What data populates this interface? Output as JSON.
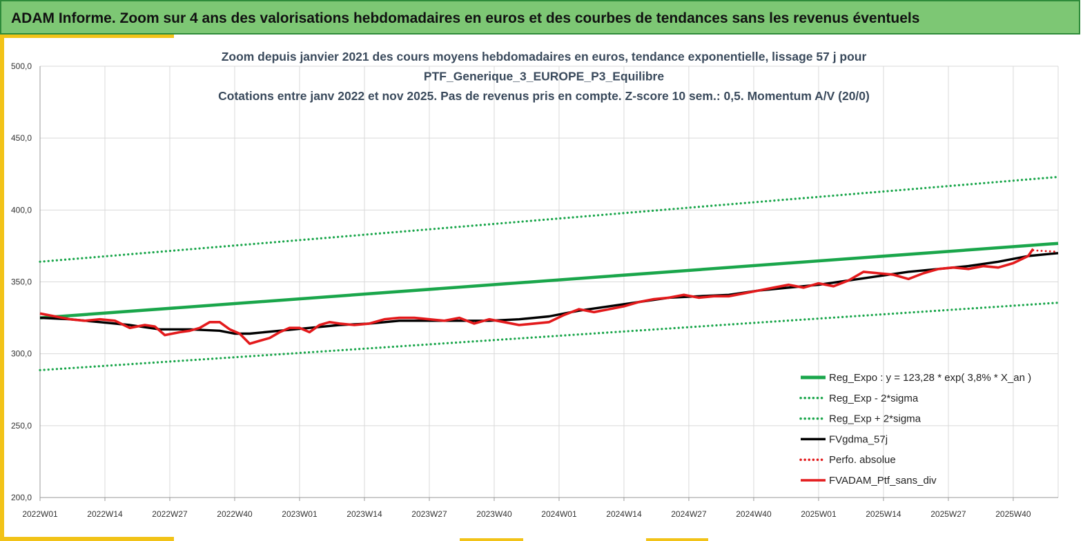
{
  "header": {
    "title": "ADAM Informe. Zoom sur 4 ans des valorisations hebdomadaires en euros et des courbes de tendances sans les revenus éventuels"
  },
  "colors": {
    "banner_bg": "#7dc774",
    "accent": "#f2c318",
    "trend_green": "#1aa64b",
    "smooth_black": "#000000",
    "price_red": "#e31a1c"
  },
  "chart_data": {
    "type": "line",
    "title_lines": [
      "Zoom depuis janvier 2021 des cours moyens hebdomadaires  en euros, tendance exponentielle, lissage 57 j pour",
      "PTF_Generique_3_EUROPE_P3_Equilibre",
      "Cotations  entre janv 2022 et nov 2025. Pas de revenus pris en compte. Z-score 10 sem.: 0,5. Momentum  A/V (20/0)"
    ],
    "ylim": [
      200,
      500
    ],
    "yticks": [
      "500,0",
      "450,0",
      "400,0",
      "350,0",
      "300,0",
      "250,0",
      "200,0"
    ],
    "xticks": [
      "2022W01",
      "2022W14",
      "2022W27",
      "2022W40",
      "2023W01",
      "2023W14",
      "2023W27",
      "2023W40",
      "2024W01",
      "2024W14",
      "2024W27",
      "2024W40",
      "2025W01",
      "2025W14",
      "2025W27",
      "2025W40"
    ],
    "x_range_weeks": [
      0,
      204
    ],
    "grid": "vertical-and-horizontal",
    "legend_position": "bottom-right",
    "series": [
      {
        "name": "Reg_Expo : y = 123,28 * exp( 3,8% *  X_an )",
        "style": "solid",
        "color": "#1aa64b",
        "x": [
          0,
          204
        ],
        "values": [
          325,
          376.8
        ]
      },
      {
        "name": "Reg_Exp - 2*sigma",
        "style": "dotted",
        "color": "#1aa64b",
        "x": [
          0,
          204
        ],
        "values": [
          288.6,
          335.5
        ]
      },
      {
        "name": "Reg_Exp + 2*sigma",
        "style": "dotted",
        "color": "#1aa64b",
        "x": [
          0,
          204
        ],
        "values": [
          364,
          423
        ]
      },
      {
        "name": "FVgdma_57j",
        "style": "solid",
        "color": "#000000",
        "x": [
          0,
          6,
          12,
          18,
          24,
          30,
          36,
          39,
          42,
          48,
          54,
          60,
          66,
          72,
          78,
          84,
          90,
          96,
          102,
          108,
          114,
          120,
          126,
          132,
          138,
          144,
          150,
          156,
          162,
          168,
          174,
          180,
          186,
          192,
          198,
          204
        ],
        "values": [
          325,
          324,
          322,
          320,
          317,
          317,
          316,
          314,
          314,
          316,
          318,
          320,
          321,
          323,
          323,
          323,
          323,
          324,
          326,
          330,
          333,
          336,
          339,
          340,
          341,
          344,
          346,
          348,
          351,
          354,
          357,
          359,
          361,
          364,
          368,
          370
        ]
      },
      {
        "name": "Perfo. absolue",
        "style": "dotted",
        "color": "#e31a1c",
        "x": [
          199,
          201,
          204
        ],
        "values": [
          372,
          371.5,
          371
        ]
      },
      {
        "name": "FVADAM_Ptf_sans_div",
        "style": "solid",
        "color": "#e31a1c",
        "x": [
          0,
          3,
          6,
          9,
          12,
          15,
          18,
          21,
          23,
          25,
          28,
          30,
          32,
          34,
          36,
          38,
          40,
          42,
          44,
          46,
          48,
          50,
          52,
          54,
          56,
          58,
          60,
          63,
          66,
          69,
          72,
          75,
          78,
          81,
          84,
          87,
          90,
          93,
          96,
          99,
          102,
          105,
          108,
          111,
          114,
          117,
          120,
          123,
          126,
          129,
          132,
          135,
          138,
          141,
          144,
          147,
          150,
          153,
          156,
          159,
          162,
          165,
          168,
          171,
          174,
          177,
          180,
          183,
          186,
          189,
          192,
          195,
          198,
          199
        ],
        "values": [
          328,
          326,
          324,
          323,
          324,
          323,
          318,
          320,
          319,
          313,
          315,
          316,
          318,
          322,
          322,
          317,
          314,
          307,
          309,
          311,
          315,
          318,
          318,
          315,
          320,
          322,
          321,
          320,
          321,
          324,
          325,
          325,
          324,
          323,
          325,
          321,
          324,
          322,
          320,
          321,
          322,
          327,
          331,
          329,
          331,
          333,
          336,
          338,
          339,
          341,
          339,
          340,
          340,
          342,
          344,
          346,
          348,
          346,
          349,
          347,
          351,
          357,
          356,
          355,
          352,
          356,
          359,
          360,
          359,
          361,
          360,
          363,
          368,
          373
        ]
      }
    ]
  }
}
